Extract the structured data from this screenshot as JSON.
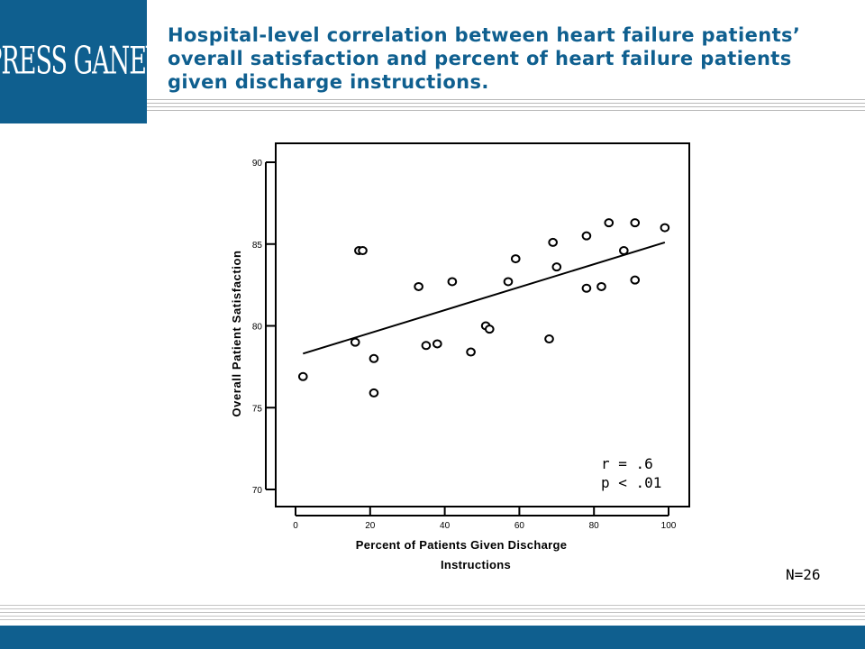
{
  "header": {
    "logo_text": "PRESS GANEY",
    "title": "Hospital-level correlation between heart failure patients’ overall satisfaction and percent of heart failure patients given discharge instructions."
  },
  "colors": {
    "brand": "#0f5f8f",
    "rule": "#b9b9b9"
  },
  "footnote": {
    "n_label": "N=26"
  },
  "chart_data": {
    "type": "scatter",
    "xlabel": "Percent of Patients Given Discharge Instructions",
    "xlabel_lines": [
      "Percent of Patients Given Discharge",
      "Instructions"
    ],
    "ylabel": "Overall Patient Satisfaction",
    "xlim": [
      0,
      100
    ],
    "ylim": [
      70,
      90
    ],
    "x_ticks": [
      0,
      20,
      40,
      60,
      80,
      100
    ],
    "y_ticks": [
      70,
      75,
      80,
      85,
      90
    ],
    "grid": false,
    "points": [
      {
        "x": 2,
        "y": 76.9
      },
      {
        "x": 16,
        "y": 79.0
      },
      {
        "x": 17,
        "y": 84.6
      },
      {
        "x": 18,
        "y": 84.6
      },
      {
        "x": 21,
        "y": 78.0
      },
      {
        "x": 21,
        "y": 75.9
      },
      {
        "x": 33,
        "y": 82.4
      },
      {
        "x": 35,
        "y": 78.8
      },
      {
        "x": 38,
        "y": 78.9
      },
      {
        "x": 42,
        "y": 82.7
      },
      {
        "x": 47,
        "y": 78.4
      },
      {
        "x": 51,
        "y": 80.0
      },
      {
        "x": 52,
        "y": 79.8
      },
      {
        "x": 57,
        "y": 82.7
      },
      {
        "x": 59,
        "y": 84.1
      },
      {
        "x": 68,
        "y": 79.2
      },
      {
        "x": 69,
        "y": 85.1
      },
      {
        "x": 70,
        "y": 83.6
      },
      {
        "x": 78,
        "y": 85.5
      },
      {
        "x": 78,
        "y": 82.3
      },
      {
        "x": 82,
        "y": 82.4
      },
      {
        "x": 84,
        "y": 86.3
      },
      {
        "x": 88,
        "y": 84.6
      },
      {
        "x": 91,
        "y": 86.3
      },
      {
        "x": 91,
        "y": 82.8
      },
      {
        "x": 99,
        "y": 86.0
      }
    ],
    "fit_line": {
      "x": [
        2,
        99
      ],
      "y": [
        78.3,
        85.1
      ]
    },
    "annotations": [
      "r = .6",
      "p < .01"
    ]
  }
}
